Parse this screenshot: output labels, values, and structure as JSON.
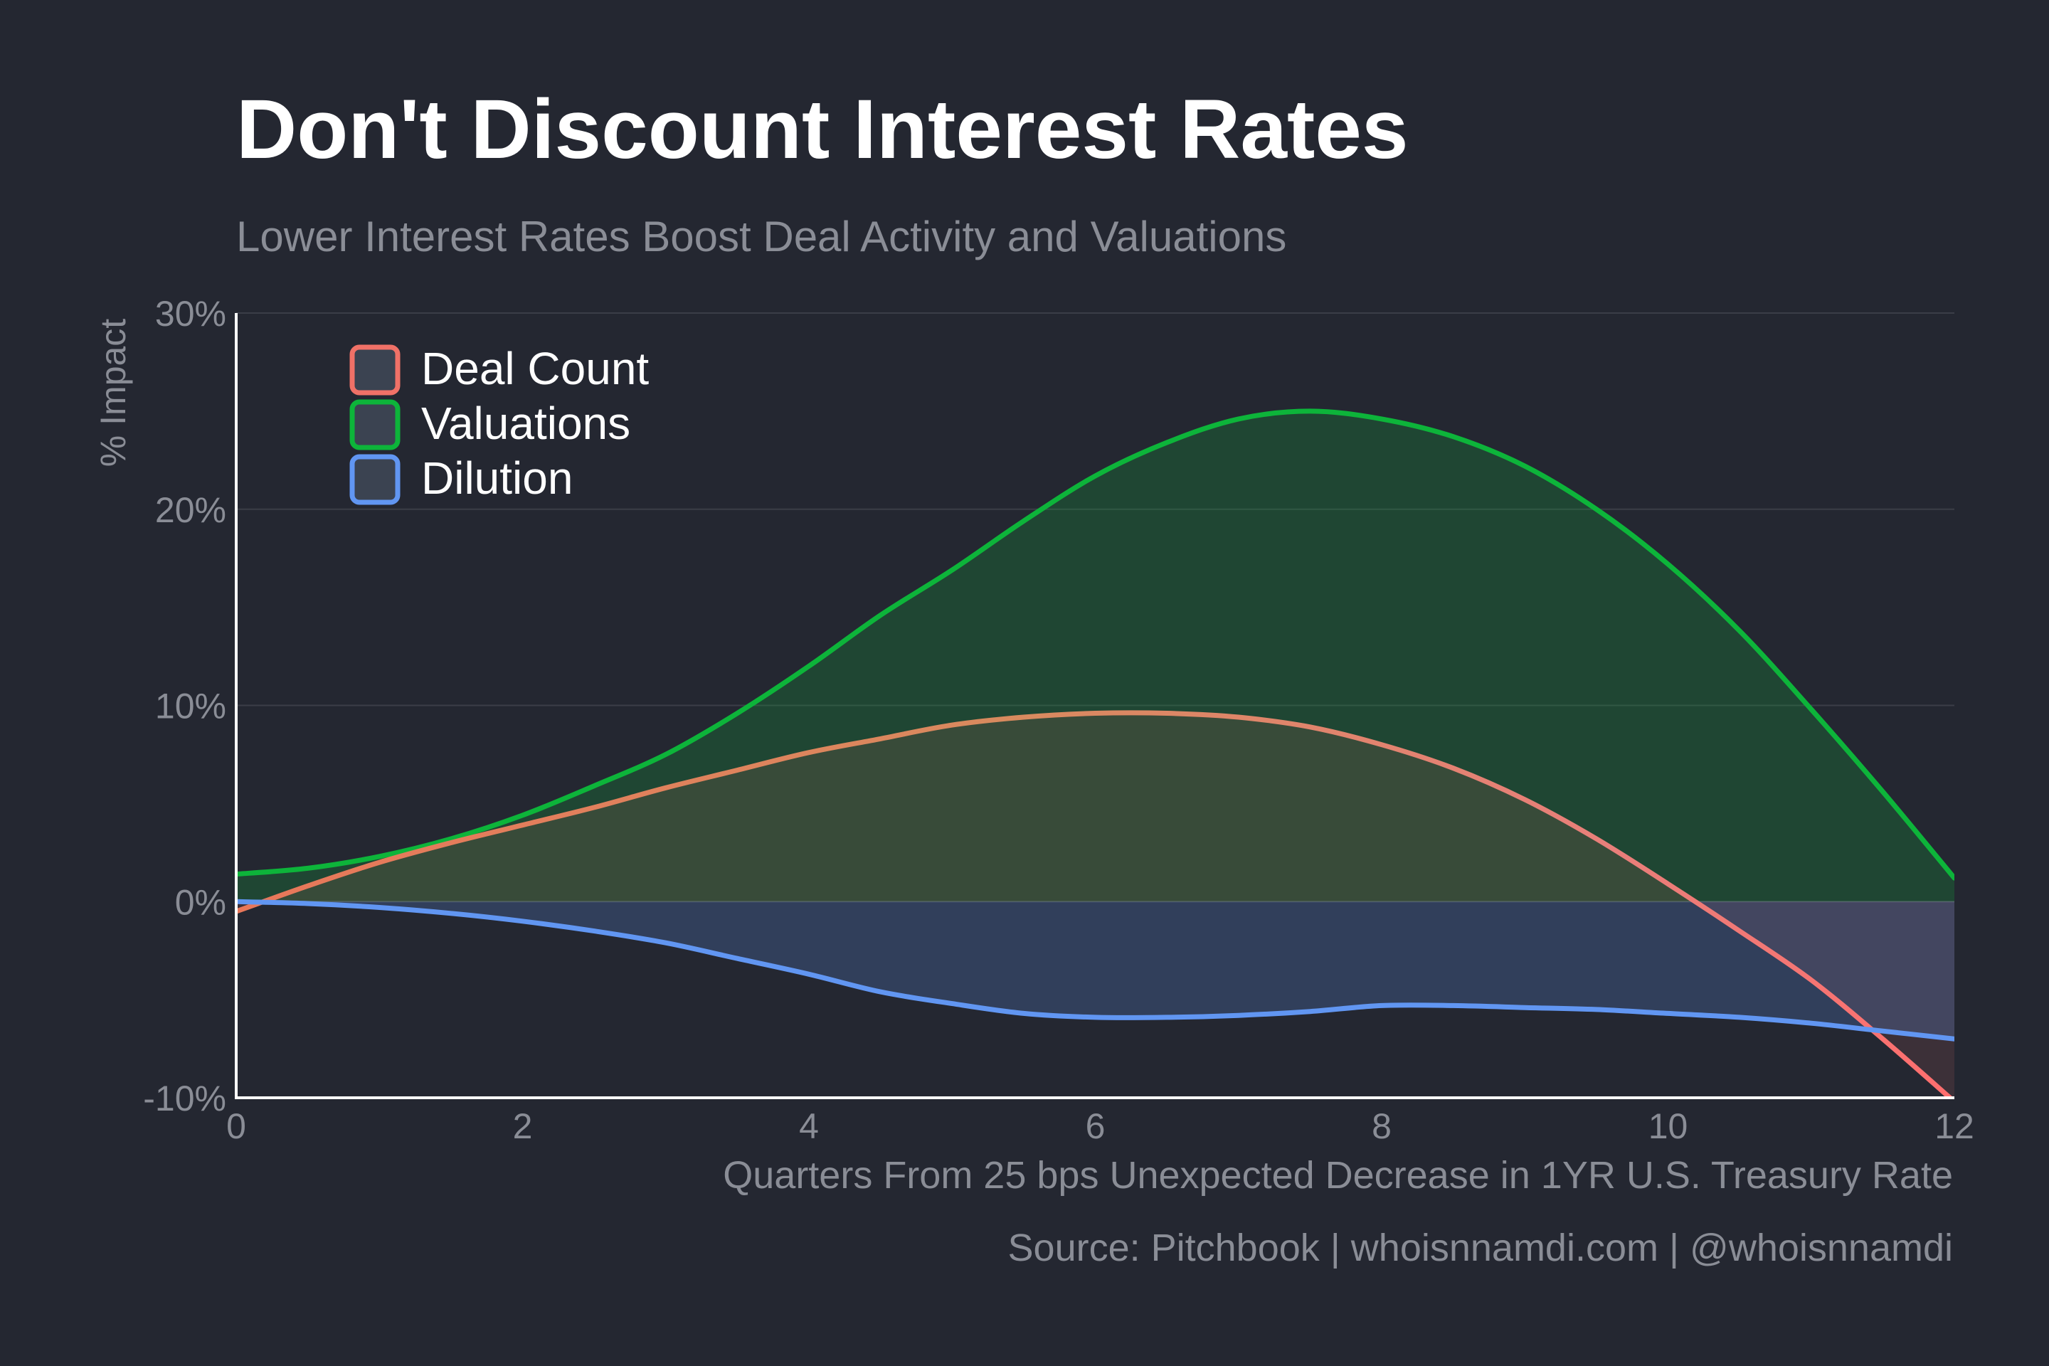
{
  "chart_data": {
    "type": "area",
    "title": "Don't Discount Interest Rates",
    "subtitle": "Lower Interest Rates Boost Deal Activity and Valuations",
    "xlabel": "Quarters From 25 bps Unexpected Decrease in 1YR U.S. Treasury Rate",
    "ylabel": "% Impact",
    "caption": "Source: Pitchbook | whoisnnamdi.com | @whoisnnamdi",
    "xlim": [
      0,
      12
    ],
    "ylim": [
      -10,
      30
    ],
    "x_ticks": [
      0,
      2,
      4,
      6,
      8,
      10,
      12
    ],
    "x_tick_labels": [
      "0",
      "2",
      "4",
      "6",
      "8",
      "10",
      "12"
    ],
    "y_ticks": [
      -10,
      0,
      10,
      20,
      30
    ],
    "y_tick_labels": [
      "-10%",
      "0%",
      "10%",
      "20%",
      "30%"
    ],
    "grid": true,
    "legend_position": "top-left",
    "x": [
      0,
      0.5,
      1,
      1.5,
      2,
      2.5,
      3,
      3.5,
      4,
      4.5,
      5,
      5.5,
      6,
      6.5,
      7,
      7.5,
      8,
      8.5,
      9,
      9.5,
      10,
      10.5,
      11,
      11.5,
      12
    ],
    "series": [
      {
        "name": "Deal Count",
        "color": "#f07167",
        "values": [
          -0.5,
          0.8,
          2.0,
          3.0,
          3.9,
          4.8,
          5.8,
          6.7,
          7.6,
          8.3,
          9.0,
          9.4,
          9.6,
          9.6,
          9.4,
          8.9,
          8.0,
          6.8,
          5.2,
          3.2,
          0.9,
          -1.5,
          -4.0,
          -7.0,
          -10.2
        ],
        "fill_opacity": 0.12
      },
      {
        "name": "Valuations",
        "color": "#0db43a",
        "values": [
          1.4,
          1.7,
          2.3,
          3.2,
          4.4,
          5.9,
          7.5,
          9.6,
          12.0,
          14.6,
          16.9,
          19.4,
          21.7,
          23.4,
          24.6,
          25.0,
          24.6,
          23.7,
          22.2,
          20.0,
          17.2,
          13.8,
          9.8,
          5.6,
          1.2
        ],
        "fill_opacity": 0.22
      },
      {
        "name": "Dilution",
        "color": "#6196f2",
        "values": [
          0.0,
          -0.1,
          -0.3,
          -0.6,
          -1.0,
          -1.5,
          -2.1,
          -2.9,
          -3.7,
          -4.6,
          -5.2,
          -5.7,
          -5.9,
          -5.9,
          -5.8,
          -5.6,
          -5.3,
          -5.3,
          -5.4,
          -5.5,
          -5.7,
          -5.9,
          -6.2,
          -6.6,
          -7.0
        ],
        "fill_opacity": 0.22
      }
    ]
  }
}
